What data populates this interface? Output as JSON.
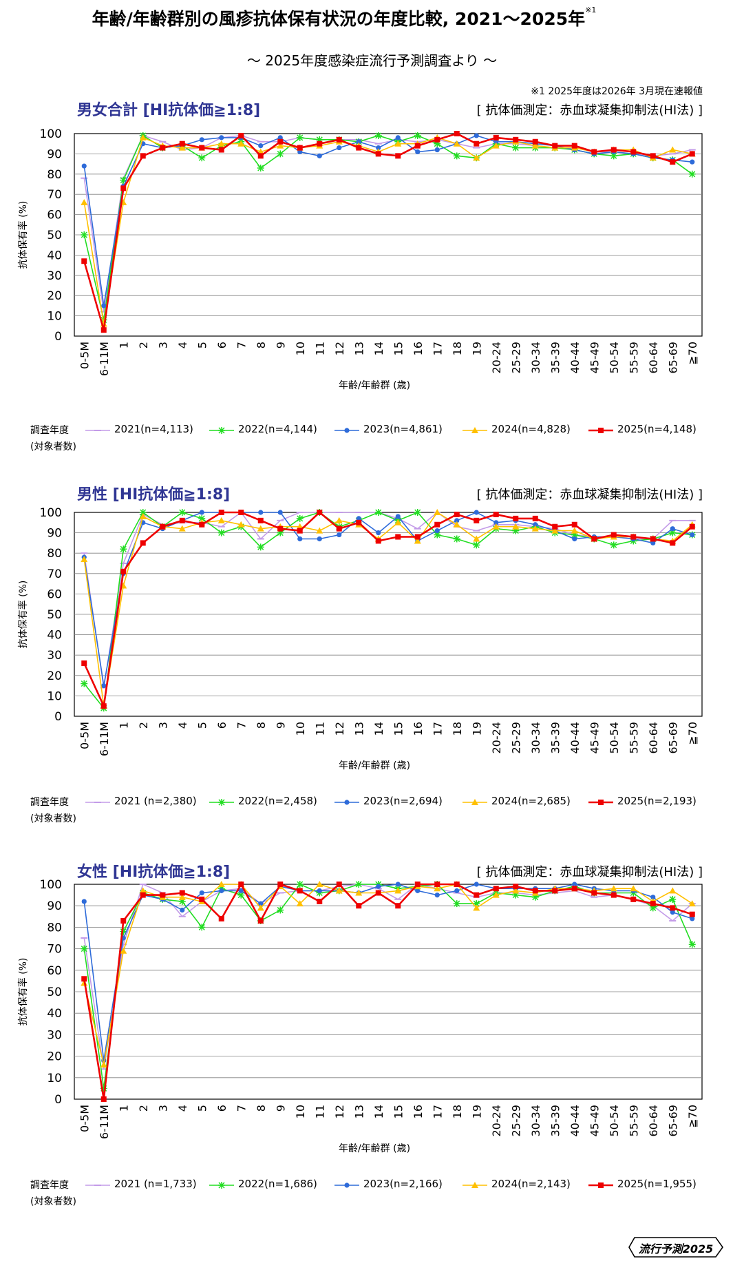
{
  "header": {
    "title": "年齢/年齢群別の風疹抗体保有状況の年度比較, 2021〜2025年",
    "title_note_mark": "※1",
    "subtitle": "〜 2025年度感染症流行予測調査より 〜",
    "footnote": "※1  2025年度は2026年 3月現在速報値"
  },
  "logo": {
    "text": "流行予測2025"
  },
  "colors": {
    "2021": "#c39be8",
    "2022": "#22dd22",
    "2023": "#2e6bd9",
    "2024": "#ffc000",
    "2025": "#ee0000"
  },
  "panels": [
    {
      "title": "男女合計 [HI抗体価≧1:8]",
      "method": "[ 抗体価測定：赤血球凝集抑制法(HI法) ]",
      "legend_heading_line1": "調査年度",
      "legend_heading_line2": "(対象者数)",
      "legend": [
        "2021(n=4,113)",
        "2022(n=4,144)",
        "2023(n=4,861)",
        "2024(n=4,828)",
        "2025(n=4,148)"
      ]
    },
    {
      "title": "男性 [HI抗体価≧1:8]",
      "method": "[ 抗体価測定：赤血球凝集抑制法(HI法) ]",
      "legend_heading_line1": "調査年度",
      "legend_heading_line2": "(対象者数)",
      "legend": [
        "2021 (n=2,380)",
        "2022(n=2,458)",
        "2023(n=2,694)",
        "2024(n=2,685)",
        "2025(n=2,193)"
      ]
    },
    {
      "title": "女性 [HI抗体価≧1:8]",
      "method": "[ 抗体価測定：赤血球凝集抑制法(HI法) ]",
      "legend_heading_line1": "調査年度",
      "legend_heading_line2": "(対象者数)",
      "legend": [
        "2021 (n=1,733)",
        "2022(n=1,686)",
        "2023(n=2,166)",
        "2024(n=2,143)",
        "2025(n=1,955)"
      ]
    }
  ],
  "chart_data": [
    {
      "type": "line",
      "title": "男女合計 [HI抗体価≧1:8]",
      "xlabel": "年齢/年齢群 (歳)",
      "ylabel": "抗体保有率 (%)",
      "ylim": [
        0,
        100
      ],
      "yticks": [
        0,
        10,
        20,
        30,
        40,
        50,
        60,
        70,
        80,
        90,
        100
      ],
      "grid": "horizontal",
      "categories": [
        "0-5M",
        "6-11M",
        "1",
        "2",
        "3",
        "4",
        "5",
        "6",
        "7",
        "8",
        "9",
        "10",
        "11",
        "12",
        "13",
        "14",
        "15",
        "16",
        "17",
        "18",
        "19",
        "20-24",
        "25-29",
        "30-34",
        "35-39",
        "40-44",
        "45-49",
        "50-54",
        "55-59",
        "60-64",
        "65-69",
        "≧70"
      ],
      "series": [
        {
          "name": "2021(n=4,113)",
          "values": [
            78,
            12,
            78,
            99,
            96,
            92,
            93,
            98,
            99,
            96,
            96,
            98,
            97,
            97,
            97,
            95,
            97,
            96,
            97,
            95,
            93,
            95,
            95,
            94,
            93,
            93,
            91,
            91,
            90,
            89,
            90,
            92
          ]
        },
        {
          "name": "2022(n=4,144)",
          "values": [
            50,
            8,
            77,
            99,
            93,
            94,
            88,
            94,
            96,
            83,
            90,
            98,
            97,
            97,
            96,
            99,
            96,
            99,
            95,
            89,
            88,
            95,
            93,
            93,
            93,
            92,
            90,
            89,
            90,
            88,
            87,
            80
          ]
        },
        {
          "name": "2023(n=4,861)",
          "values": [
            84,
            15,
            74,
            95,
            93,
            94,
            97,
            98,
            98,
            94,
            98,
            91,
            89,
            93,
            96,
            93,
            98,
            91,
            92,
            95,
            99,
            96,
            96,
            95,
            94,
            92,
            90,
            91,
            90,
            88,
            87,
            86
          ]
        },
        {
          "name": "2024(n=4,828)",
          "values": [
            66,
            6,
            66,
            98,
            94,
            93,
            93,
            95,
            95,
            91,
            94,
            93,
            94,
            96,
            94,
            91,
            95,
            95,
            98,
            95,
            88,
            94,
            96,
            94,
            93,
            93,
            91,
            92,
            92,
            88,
            92,
            90
          ]
        },
        {
          "name": "2025(n=4,148)",
          "values": [
            37,
            3,
            73,
            89,
            93,
            95,
            93,
            92,
            99,
            89,
            96,
            93,
            95,
            97,
            93,
            90,
            89,
            94,
            97,
            100,
            95,
            98,
            97,
            96,
            94,
            94,
            91,
            92,
            91,
            89,
            86,
            90
          ]
        }
      ]
    },
    {
      "type": "line",
      "title": "男性 [HI抗体価≧1:8]",
      "xlabel": "年齢/年齢群 (歳)",
      "ylabel": "抗体保有率 (%)",
      "ylim": [
        0,
        100
      ],
      "yticks": [
        0,
        10,
        20,
        30,
        40,
        50,
        60,
        70,
        80,
        90,
        100
      ],
      "grid": "horizontal",
      "categories": [
        "0-5M",
        "6-11M",
        "1",
        "2",
        "3",
        "4",
        "5",
        "6",
        "7",
        "8",
        "9",
        "10",
        "11",
        "12",
        "13",
        "14",
        "15",
        "16",
        "17",
        "18",
        "19",
        "20-24",
        "25-29",
        "30-34",
        "35-39",
        "40-44",
        "45-49",
        "50-54",
        "55-59",
        "60-64",
        "65-69",
        "≧70"
      ],
      "series": [
        {
          "name": "2021 (n=2,380)",
          "values": [
            80,
            14,
            75,
            99,
            94,
            95,
            95,
            93,
            100,
            87,
            96,
            100,
            100,
            100,
            100,
            100,
            97,
            92,
            100,
            93,
            91,
            94,
            94,
            93,
            92,
            89,
            88,
            88,
            87,
            87,
            96,
            96
          ]
        },
        {
          "name": "2022(n=2,458)",
          "values": [
            16,
            4,
            82,
            100,
            93,
            100,
            97,
            90,
            93,
            83,
            90,
            97,
            100,
            93,
            96,
            100,
            96,
            100,
            89,
            87,
            84,
            92,
            91,
            93,
            90,
            89,
            87,
            84,
            86,
            87,
            90,
            89
          ]
        },
        {
          "name": "2023(n=2,694)",
          "values": [
            78,
            15,
            70,
            95,
            92,
            96,
            100,
            100,
            100,
            100,
            100,
            87,
            87,
            89,
            97,
            90,
            98,
            86,
            91,
            96,
            100,
            95,
            96,
            94,
            91,
            87,
            88,
            88,
            87,
            85,
            92,
            89
          ]
        },
        {
          "name": "2024(n=2,685)",
          "values": [
            77,
            5,
            64,
            98,
            93,
            92,
            95,
            96,
            94,
            92,
            93,
            93,
            91,
            96,
            94,
            87,
            95,
            86,
            100,
            94,
            87,
            93,
            93,
            92,
            91,
            91,
            87,
            88,
            88,
            87,
            86,
            94
          ]
        },
        {
          "name": "2025(n=2,193)",
          "values": [
            26,
            5,
            71,
            85,
            93,
            96,
            94,
            100,
            100,
            96,
            92,
            91,
            100,
            92,
            95,
            86,
            88,
            88,
            94,
            99,
            96,
            99,
            97,
            97,
            93,
            94,
            87,
            89,
            88,
            87,
            85,
            93
          ]
        }
      ]
    },
    {
      "type": "line",
      "title": "女性 [HI抗体価≧1:8]",
      "xlabel": "年齢/年齢群 (歳)",
      "ylabel": "抗体保有率 (%)",
      "ylim": [
        0,
        100
      ],
      "yticks": [
        0,
        10,
        20,
        30,
        40,
        50,
        60,
        70,
        80,
        90,
        100
      ],
      "grid": "horizontal",
      "categories": [
        "0-5M",
        "6-11M",
        "1",
        "2",
        "3",
        "4",
        "5",
        "6",
        "7",
        "8",
        "9",
        "10",
        "11",
        "12",
        "13",
        "14",
        "15",
        "16",
        "17",
        "18",
        "19",
        "20-24",
        "25-29",
        "30-34",
        "35-39",
        "40-44",
        "45-49",
        "50-54",
        "55-59",
        "60-64",
        "65-69",
        "≧70"
      ],
      "series": [
        {
          "name": "2021 (n=1,733)",
          "values": [
            75,
            14,
            72,
            100,
            96,
            85,
            92,
            97,
            98,
            91,
            96,
            97,
            97,
            99,
            100,
            98,
            93,
            100,
            98,
            96,
            94,
            96,
            96,
            95,
            96,
            97,
            94,
            95,
            93,
            90,
            83,
            91
          ]
        },
        {
          "name": "2022(n=1,686)",
          "values": [
            70,
            5,
            78,
            96,
            93,
            92,
            80,
            98,
            95,
            83,
            88,
            100,
            96,
            97,
            100,
            100,
            98,
            99,
            100,
            91,
            91,
            96,
            95,
            94,
            97,
            99,
            96,
            96,
            96,
            89,
            93,
            72
          ]
        },
        {
          "name": "2023(n=2,166)",
          "values": [
            92,
            18,
            75,
            95,
            93,
            88,
            96,
            97,
            97,
            91,
            99,
            97,
            97,
            97,
            96,
            99,
            100,
            97,
            95,
            97,
            100,
            98,
            98,
            98,
            98,
            100,
            98,
            97,
            97,
            94,
            87,
            84
          ]
        },
        {
          "name": "2024(n=2,143)",
          "values": [
            54,
            16,
            69,
            97,
            94,
            94,
            92,
            100,
            100,
            89,
            99,
            91,
            100,
            97,
            96,
            96,
            97,
            99,
            98,
            100,
            89,
            95,
            97,
            96,
            98,
            98,
            97,
            98,
            98,
            92,
            97,
            91
          ]
        },
        {
          "name": "2025(n=1,955)",
          "values": [
            56,
            0,
            83,
            95,
            95,
            96,
            93,
            84,
            100,
            83,
            100,
            97,
            92,
            100,
            90,
            96,
            90,
            100,
            100,
            100,
            95,
            98,
            99,
            97,
            97,
            98,
            96,
            95,
            93,
            91,
            89,
            86
          ]
        }
      ]
    }
  ]
}
